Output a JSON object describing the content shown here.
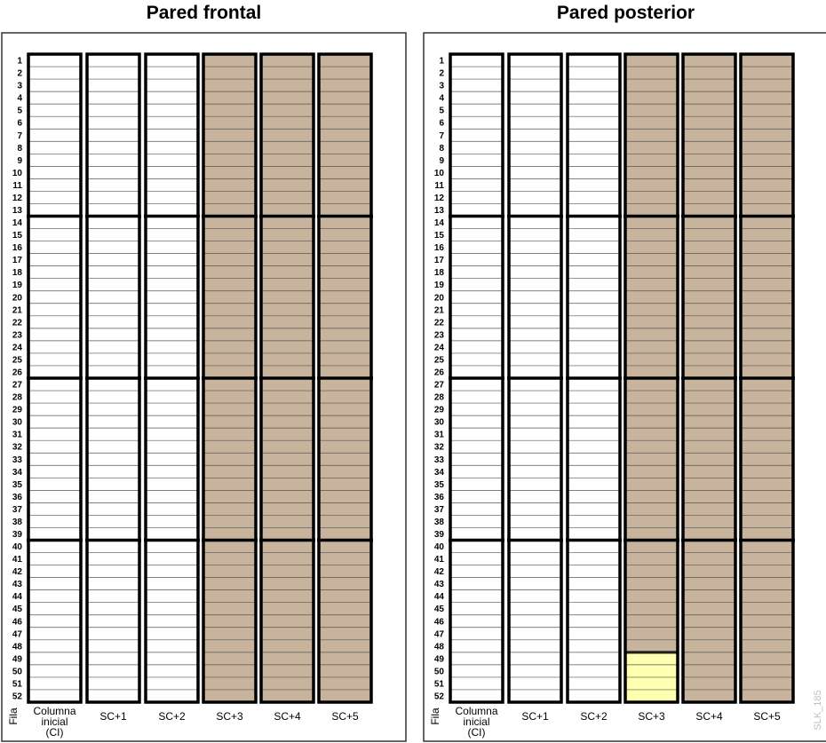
{
  "panels": [
    {
      "title": "Pared frontal",
      "row_axis_label": "Fila",
      "rows": [
        "1",
        "2",
        "3",
        "4",
        "5",
        "6",
        "7",
        "8",
        "9",
        "10",
        "11",
        "12",
        "13",
        "14",
        "15",
        "16",
        "17",
        "18",
        "19",
        "20",
        "21",
        "22",
        "23",
        "24",
        "25",
        "26",
        "27",
        "28",
        "29",
        "30",
        "31",
        "32",
        "33",
        "34",
        "35",
        "36",
        "37",
        "38",
        "39",
        "40",
        "41",
        "42",
        "43",
        "44",
        "45",
        "46",
        "47",
        "48",
        "49",
        "50",
        "51",
        "52"
      ],
      "columns": [
        {
          "label_lines": [
            "Columna",
            "inicial",
            "(CI)"
          ],
          "fill": "#ffffff"
        },
        {
          "label_lines": [
            "SC+1"
          ],
          "fill": "#ffffff"
        },
        {
          "label_lines": [
            "SC+2"
          ],
          "fill": "#ffffff"
        },
        {
          "label_lines": [
            "SC+3"
          ],
          "fill": "#c8b49c"
        },
        {
          "label_lines": [
            "SC+4"
          ],
          "fill": "#c8b49c"
        },
        {
          "label_lines": [
            "SC+5"
          ],
          "fill": "#c8b49c"
        }
      ]
    },
    {
      "title": "Pared posterior",
      "row_axis_label": "Fila",
      "rows": [
        "1",
        "2",
        "3",
        "4",
        "5",
        "6",
        "7",
        "8",
        "9",
        "10",
        "11",
        "12",
        "13",
        "14",
        "15",
        "16",
        "17",
        "18",
        "19",
        "20",
        "21",
        "22",
        "23",
        "24",
        "25",
        "26",
        "27",
        "28",
        "29",
        "30",
        "31",
        "32",
        "33",
        "34",
        "35",
        "36",
        "37",
        "38",
        "39",
        "40",
        "41",
        "42",
        "43",
        "44",
        "45",
        "46",
        "47",
        "48",
        "49",
        "50",
        "51",
        "52"
      ],
      "columns": [
        {
          "label_lines": [
            "Columna",
            "inicial",
            "(CI)"
          ],
          "fill": "#ffffff"
        },
        {
          "label_lines": [
            "SC+1"
          ],
          "fill": "#ffffff"
        },
        {
          "label_lines": [
            "SC+2"
          ],
          "fill": "#ffffff"
        },
        {
          "label_lines": [
            "SC+3"
          ],
          "fill": "#c8b49c",
          "highlight": {
            "from_row": "49",
            "to_row": "52",
            "fill": "#ffffb0"
          }
        },
        {
          "label_lines": [
            "SC+4"
          ],
          "fill": "#c8b49c"
        },
        {
          "label_lines": [
            "SC+5"
          ],
          "fill": "#c8b49c"
        }
      ]
    }
  ],
  "module_boundaries_after_rows": [
    "13",
    "26",
    "39"
  ],
  "watermark": "SLK_185"
}
